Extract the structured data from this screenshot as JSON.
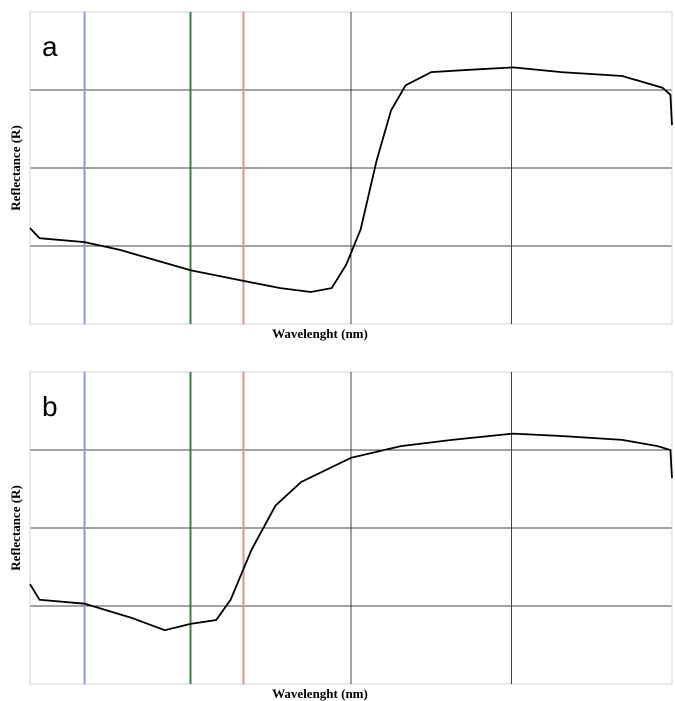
{
  "chart_data": [
    {
      "type": "line",
      "panel_label": "a",
      "x_label": "Wavelenght (nm)",
      "y_label": "Reflectance (R)",
      "xlim": [
        0,
        4
      ],
      "ylim": [
        0,
        4
      ],
      "xticks": [
        0,
        1,
        2,
        3,
        4
      ],
      "yticks": [
        0,
        1,
        2,
        3,
        4
      ],
      "grid": true,
      "vlines": [
        {
          "x": 0.34,
          "color": "#8c9ccc"
        },
        {
          "x": 1,
          "color": "#3f7a4a"
        },
        {
          "x": 1.33,
          "color": "#d89090"
        }
      ],
      "series": [
        {
          "color": "#000000",
          "x": [
            0,
            0.06,
            0.34,
            0.56,
            1,
            1.31,
            1.56,
            1.75,
            1.88,
            1.97,
            2.06,
            2.16,
            2.25,
            2.34,
            2.5,
            2.75,
            3.01,
            3.31,
            3.69,
            3.94,
            3.99,
            4
          ],
          "values": [
            1.23,
            1.1,
            1.05,
            0.95,
            0.69,
            0.56,
            0.46,
            0.41,
            0.46,
            0.76,
            1.21,
            2.1,
            2.74,
            3.06,
            3.23,
            3.26,
            3.29,
            3.23,
            3.18,
            3.03,
            2.94,
            2.55
          ]
        }
      ]
    },
    {
      "type": "line",
      "panel_label": "b",
      "x_label": "Wavelenght (nm)",
      "y_label": "Reflectance (R)",
      "xlim": [
        0,
        4
      ],
      "ylim": [
        0,
        4
      ],
      "xticks": [
        0,
        1,
        2,
        3,
        4
      ],
      "yticks": [
        0,
        1,
        2,
        3,
        4
      ],
      "grid": true,
      "vlines": [
        {
          "x": 0.34,
          "color": "#8c9ccc"
        },
        {
          "x": 1,
          "color": "#3f7a4a"
        },
        {
          "x": 1.33,
          "color": "#d89090"
        }
      ],
      "series": [
        {
          "color": "#000000",
          "x": [
            0,
            0.06,
            0.34,
            0.63,
            0.84,
            1,
            1.16,
            1.25,
            1.38,
            1.53,
            1.69,
            2,
            2.31,
            2.63,
            3.01,
            3.31,
            3.69,
            3.91,
            3.99,
            4
          ],
          "values": [
            1.28,
            1.08,
            1.03,
            0.85,
            0.69,
            0.77,
            0.82,
            1.08,
            1.72,
            2.29,
            2.59,
            2.9,
            3.05,
            3.13,
            3.21,
            3.18,
            3.13,
            3.05,
            3.0,
            2.64
          ]
        }
      ]
    }
  ]
}
